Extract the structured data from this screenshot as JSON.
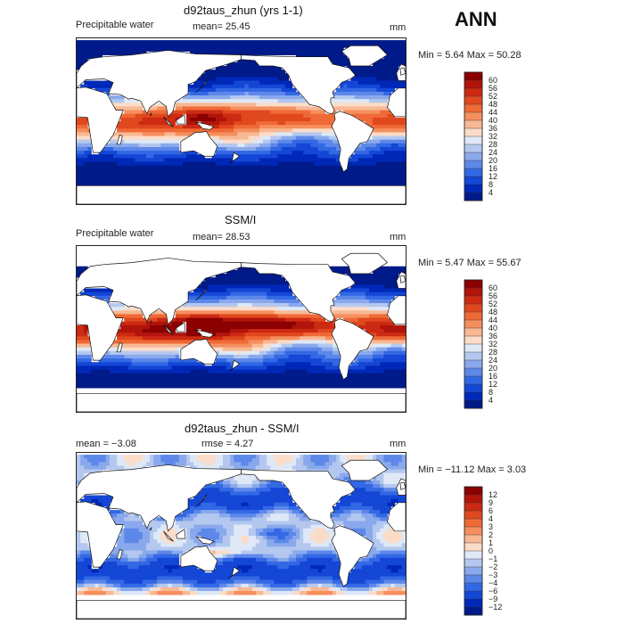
{
  "season": "ANN",
  "colors": {
    "land": "#ffffff",
    "coast": "#111111",
    "border": "#222222"
  },
  "panels": [
    {
      "id": "model",
      "title": "d92taus_zhun (yrs 1-1)",
      "left_label": "Precipitable water",
      "center_label": "mean=  25.45",
      "right_label": "mm",
      "minmax": "Min =    5.64  Max =   50.28",
      "colorbar": {
        "labels": [
          "60",
          "56",
          "52",
          "48",
          "44",
          "40",
          "36",
          "32",
          "28",
          "24",
          "20",
          "16",
          "12",
          "8",
          "4"
        ],
        "colors": [
          "#8b0000",
          "#b0140a",
          "#cc2a12",
          "#e0481e",
          "#ef6a36",
          "#f58f5e",
          "#f8b894",
          "#fbdcc8",
          "#dfe8f6",
          "#b4c8ef",
          "#8aa9ec",
          "#5d88ea",
          "#3368e4",
          "#1447d6",
          "#0028b8",
          "#001a8a"
        ]
      }
    },
    {
      "id": "obs",
      "title": "SSM/I",
      "left_label": "Precipitable water",
      "center_label": "mean=  28.53",
      "right_label": "mm",
      "minmax": "Min =    5.47  Max =   55.67",
      "colorbar": {
        "labels": [
          "60",
          "56",
          "52",
          "48",
          "44",
          "40",
          "36",
          "32",
          "28",
          "24",
          "20",
          "16",
          "12",
          "8",
          "4"
        ],
        "colors": [
          "#8b0000",
          "#b0140a",
          "#cc2a12",
          "#e0481e",
          "#ef6a36",
          "#f58f5e",
          "#f8b894",
          "#fbdcc8",
          "#dfe8f6",
          "#b4c8ef",
          "#8aa9ec",
          "#5d88ea",
          "#3368e4",
          "#1447d6",
          "#0028b8",
          "#001a8a"
        ]
      }
    },
    {
      "id": "diff",
      "title": "d92taus_zhun - SSM/I",
      "left_label": "mean =  −3.08",
      "center_label": "rmse =   4.27",
      "right_label": "mm",
      "minmax": "Min =  −11.12  Max =    3.03",
      "colorbar": {
        "labels": [
          "12",
          "9",
          "6",
          "4",
          "3",
          "2",
          "1",
          "0",
          "−1",
          "−2",
          "−3",
          "−4",
          "−6",
          "−9",
          "−12"
        ],
        "colors": [
          "#8b0000",
          "#b0140a",
          "#cc2a12",
          "#e0481e",
          "#ef6a36",
          "#f58f5e",
          "#f8b894",
          "#fbdcc8",
          "#dfe8f6",
          "#b4c8ef",
          "#8aa9ec",
          "#5d88ea",
          "#3368e4",
          "#1447d6",
          "#0028b8",
          "#001a8a"
        ]
      }
    }
  ],
  "chart_data": {
    "type": "heatmap",
    "projection": "global lat-lon map, 0E-360E, 90S-90N",
    "panels": [
      {
        "title": "d92taus_zhun (yrs 1-1)",
        "variable": "Precipitable water",
        "units": "mm",
        "mean": 25.45,
        "min": 5.64,
        "max": 50.28,
        "levels": [
          4,
          8,
          12,
          16,
          20,
          24,
          28,
          32,
          36,
          40,
          44,
          48,
          52,
          56,
          60
        ]
      },
      {
        "title": "SSM/I",
        "variable": "Precipitable water",
        "units": "mm",
        "mean": 28.53,
        "min": 5.47,
        "max": 55.67,
        "levels": [
          4,
          8,
          12,
          16,
          20,
          24,
          28,
          32,
          36,
          40,
          44,
          48,
          52,
          56,
          60
        ]
      },
      {
        "title": "d92taus_zhun - SSM/I",
        "units": "mm",
        "mean": -3.08,
        "rmse": 4.27,
        "min": -11.12,
        "max": 3.03,
        "levels": [
          -12,
          -9,
          -6,
          -4,
          -3,
          -2,
          -1,
          0,
          1,
          2,
          3,
          4,
          6,
          9,
          12
        ]
      }
    ]
  }
}
